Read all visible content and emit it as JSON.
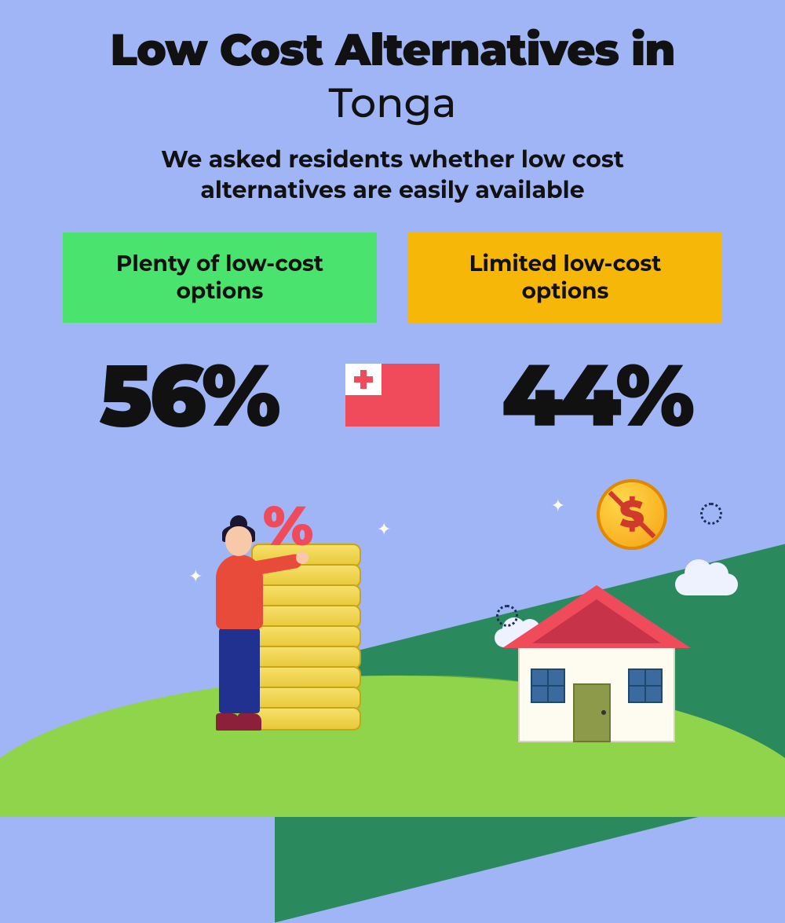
{
  "type": "infographic",
  "background_color": "#a0b5f5",
  "title": {
    "line1": "Low Cost Alternatives in",
    "line2": "Tonga",
    "line1_weight": 900,
    "line2_weight": 500,
    "fontsize": 56,
    "color": "#111111"
  },
  "subtitle": {
    "text": "We asked residents whether low cost alternatives are easily available",
    "fontsize": 30,
    "weight": 700,
    "color": "#111111"
  },
  "options": [
    {
      "label": "Plenty of low-cost options",
      "percent": "56%",
      "box_color": "#49e36e",
      "text_color": "#111111"
    },
    {
      "label": "Limited low-cost options",
      "percent": "44%",
      "box_color": "#f7b708",
      "text_color": "#111111"
    }
  ],
  "percent_style": {
    "fontsize": 110,
    "weight": 900,
    "color": "#111111"
  },
  "flag": {
    "country": "Tonga",
    "field_color": "#ef4b5a",
    "canton_color": "#ffffff",
    "cross_color": "#ef4b5a"
  },
  "illustration": {
    "hills": {
      "dark": "#2a8a5e",
      "mid": "#5fb038",
      "light": "#8fd44a"
    },
    "coin_stack": {
      "count": 9,
      "fill": "#f7e06a",
      "edge": "#caa512",
      "symbol": "%",
      "symbol_color": "#ef4b5a"
    },
    "person": {
      "shirt": "#e84b3a",
      "pants": "#20318f",
      "skin": "#f7c9a8",
      "hair": "#1a1630",
      "shoes": "#8c1f3a"
    },
    "house": {
      "wall": "#fefcf0",
      "roof": "#ef4b5a",
      "roof_inner": "#c73348",
      "door": "#8c9a4a",
      "window": "#3a6a9e"
    },
    "dollar_coin": {
      "fill": "#f5a214",
      "border": "#e08800",
      "symbol": "$",
      "symbol_color": "#d03a2a"
    },
    "cloud_color": "#eef2ff",
    "sparkle_color": "#fefcf0",
    "ring_color": "#1a2a5a"
  }
}
